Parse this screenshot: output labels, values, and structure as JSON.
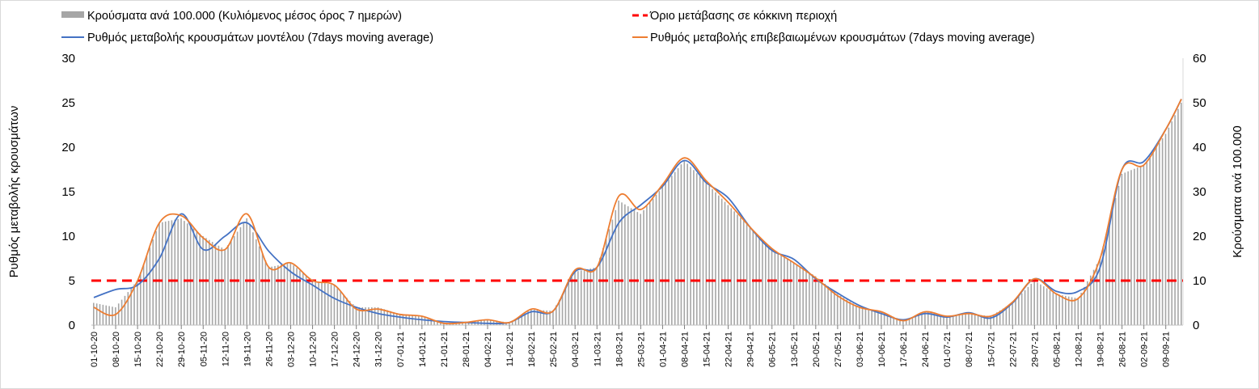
{
  "chart_data": {
    "type": "line",
    "title": "",
    "legend_position": "top",
    "legend": {
      "bars": "Κρούσματα ανά 100.000 (Κυλιόμενος μέσος όρος 7 ημερών)",
      "threshold": "Όριο μετάβασης σε κόκκινη περιοχή",
      "model": "Ρυθμός μεταβολής κρουσμάτων μοντέλου (7days moving average)",
      "confirmed": "Ρυθμός μεταβολής επιβεβαιωμένων κρουσμάτων (7days moving average)"
    },
    "ylabel": "Ρυθμός μεταβολής κρουσμάτων",
    "y2label": "Κρούσματα ανά 100.000",
    "ylim": [
      0,
      30
    ],
    "y2lim": [
      0,
      60
    ],
    "yticks": [
      "0",
      "5",
      "10",
      "15",
      "20",
      "25",
      "30"
    ],
    "y2ticks": [
      "0",
      "10",
      "20",
      "30",
      "40",
      "50",
      "60"
    ],
    "threshold_value": 5,
    "tick_labels": [
      "01-10-20",
      "08-10-20",
      "15-10-20",
      "22-10-20",
      "29-10-20",
      "05-11-20",
      "12-11-20",
      "19-11-20",
      "26-11-20",
      "03-12-20",
      "10-12-20",
      "17-12-20",
      "24-12-20",
      "31-12-20",
      "07-01-21",
      "14-01-21",
      "21-01-21",
      "28-01-21",
      "04-02-21",
      "11-02-21",
      "18-02-21",
      "25-02-21",
      "04-03-21",
      "11-03-21",
      "18-03-21",
      "25-03-21",
      "01-04-21",
      "08-04-21",
      "15-04-21",
      "22-04-21",
      "29-04-21",
      "06-05-21",
      "13-05-21",
      "20-05-21",
      "27-05-21",
      "03-06-21",
      "10-06-21",
      "17-06-21",
      "24-06-21",
      "01-07-21",
      "08-07-21",
      "15-07-21",
      "22-07-21",
      "29-07-21",
      "05-08-21",
      "12-08-21",
      "19-08-21",
      "26-08-21",
      "02-09-21",
      "09-09-21"
    ],
    "x_days": [
      0,
      7,
      14,
      21,
      28,
      35,
      42,
      49,
      56,
      63,
      70,
      77,
      84,
      91,
      98,
      105,
      112,
      119,
      126,
      133,
      140,
      147,
      154,
      161,
      168,
      175,
      182,
      189,
      196,
      203,
      210,
      217,
      224,
      231,
      238,
      245,
      252,
      259,
      266,
      273,
      280,
      287,
      294,
      301,
      308,
      315,
      322,
      329,
      336,
      343,
      348
    ],
    "series": [
      {
        "name": "model",
        "axis": "left",
        "color": "#4472C4",
        "values": [
          3.1,
          4.0,
          4.5,
          7.5,
          12.5,
          8.5,
          10,
          11.5,
          8.3,
          6,
          4.5,
          3,
          2,
          1.3,
          0.9,
          0.6,
          0.4,
          0.3,
          0.2,
          0.3,
          1.5,
          1.6,
          6,
          6.5,
          11.5,
          13.5,
          15.6,
          18.5,
          16,
          14.3,
          11,
          8.4,
          7.4,
          5.2,
          3.6,
          2.2,
          1.3,
          0.6,
          1.3,
          0.9,
          1.4,
          0.8,
          2.5,
          5.2,
          3.8,
          3.8,
          6.5,
          17.5,
          18.4,
          22,
          25.4
        ]
      },
      {
        "name": "confirmed",
        "axis": "left",
        "color": "#ED7D31",
        "values": [
          2.0,
          1.2,
          5.0,
          11.5,
          12.3,
          9.8,
          8.5,
          12.5,
          6.5,
          7.0,
          5.0,
          4.5,
          1.8,
          1.8,
          1.2,
          1.0,
          0.2,
          0.3,
          0.6,
          0.3,
          1.8,
          1.6,
          6.2,
          6.5,
          14.5,
          13.0,
          15.8,
          18.8,
          16.2,
          13.8,
          11,
          8.6,
          7.0,
          5.3,
          3.3,
          2.0,
          1.5,
          0.5,
          1.5,
          1.0,
          1.3,
          1.0,
          2.6,
          5.2,
          3.5,
          3.0,
          7.5,
          17.5,
          18.0,
          22,
          25.4
        ]
      },
      {
        "name": "cases_per_100k",
        "axis": "right",
        "color": "#A6A6A6",
        "values": [
          5,
          4,
          10,
          23,
          24,
          20,
          17,
          24,
          13,
          14,
          10,
          9,
          4,
          4,
          2.5,
          2,
          0.5,
          0.6,
          1.2,
          0.6,
          3.5,
          3.2,
          12,
          13,
          28,
          25,
          31,
          37,
          32,
          27,
          22,
          17,
          14,
          11,
          7,
          4,
          3,
          1,
          3,
          2,
          2.6,
          2,
          5,
          10,
          7,
          6,
          15,
          34,
          36,
          43,
          50
        ]
      }
    ]
  }
}
